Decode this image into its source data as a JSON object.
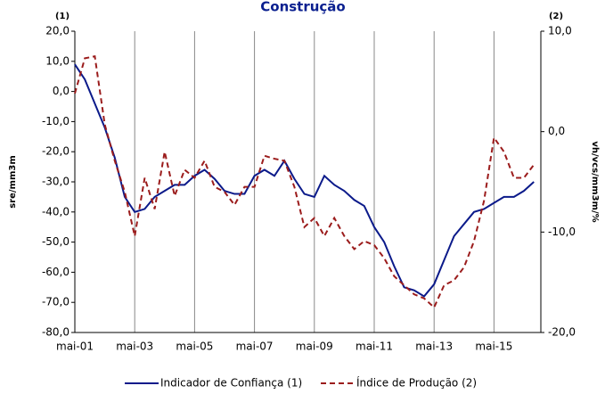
{
  "chart_data": {
    "type": "line",
    "title": "Construção",
    "left_note": "(1)",
    "right_note": "(2)",
    "y_label": "sre/mm3m",
    "y2_label": "vh/vcs/mm3m/%",
    "categories": [
      "mai-01",
      null,
      null,
      null,
      null,
      null,
      "mai-03",
      null,
      null,
      null,
      null,
      null,
      "mai-05",
      null,
      null,
      null,
      null,
      null,
      "mai-07",
      null,
      null,
      null,
      null,
      null,
      "mai-09",
      null,
      null,
      null,
      null,
      null,
      "mai-11",
      null,
      null,
      null,
      null,
      null,
      "mai-13",
      null,
      null,
      null,
      null,
      null,
      "mai-15",
      null,
      null,
      null,
      null
    ],
    "series": [
      {
        "name": "Indicador de Confiança (1)",
        "color": "#0b1a8a",
        "dash": false,
        "values": [
          9,
          4,
          -4,
          -12,
          -22,
          -35,
          -40,
          -39,
          -35,
          -33,
          -31,
          -31,
          -28,
          -26,
          -29,
          -33,
          -34,
          -34,
          -28,
          -26,
          -28,
          -23,
          -29,
          -34,
          -35,
          -28,
          -31,
          -33,
          -36,
          -38,
          -45,
          -50,
          -58,
          -65,
          -66,
          -68,
          -64,
          -56,
          -48,
          -44,
          -40,
          -39,
          -37,
          -35,
          -35,
          -33,
          -30
        ]
      },
      {
        "name": "Índice de Produção (2)",
        "color": "#9b1c1c",
        "dash": true,
        "axis": "y2",
        "values": [
          3.8,
          7.3,
          7.5,
          0.7,
          -2.9,
          -6,
          -10.4,
          -4.6,
          -7.7,
          -2,
          -6.4,
          -3.8,
          -4.6,
          -2.9,
          -5.5,
          -6,
          -7.3,
          -5.5,
          -5.5,
          -2.4,
          -2.7,
          -2.9,
          -5.5,
          -9.5,
          -8.6,
          -10.4,
          -8.6,
          -10.4,
          -11.7,
          -10.9,
          -11.3,
          -12.6,
          -14.4,
          -15.3,
          -16.2,
          -16.6,
          -17.5,
          -15.3,
          -14.8,
          -13.5,
          -10.9,
          -6.9,
          -0.6,
          -2,
          -4.6,
          -4.6,
          -3.3
        ]
      }
    ],
    "ylim": [
      -80,
      20
    ],
    "yticks": [
      {
        "value": -80,
        "label": "-80,0"
      },
      {
        "value": -70,
        "label": "-70,0"
      },
      {
        "value": -60,
        "label": "-60,0"
      },
      {
        "value": -50,
        "label": "-50,0"
      },
      {
        "value": -40,
        "label": "-40,0"
      },
      {
        "value": -30,
        "label": "-30,0"
      },
      {
        "value": -20,
        "label": "-20,0"
      },
      {
        "value": -10,
        "label": "-10,0"
      },
      {
        "value": 0,
        "label": "0,0"
      },
      {
        "value": 10,
        "label": "10,0"
      },
      {
        "value": 20,
        "label": "20,0"
      }
    ],
    "y2lim": [
      -20,
      10
    ],
    "y2ticks": [
      {
        "value": -20,
        "label": "-20,0"
      },
      {
        "value": -10,
        "label": "-10,0"
      },
      {
        "value": 0,
        "label": "0,0"
      },
      {
        "value": 10,
        "label": "10,0"
      }
    ],
    "grid": true
  }
}
